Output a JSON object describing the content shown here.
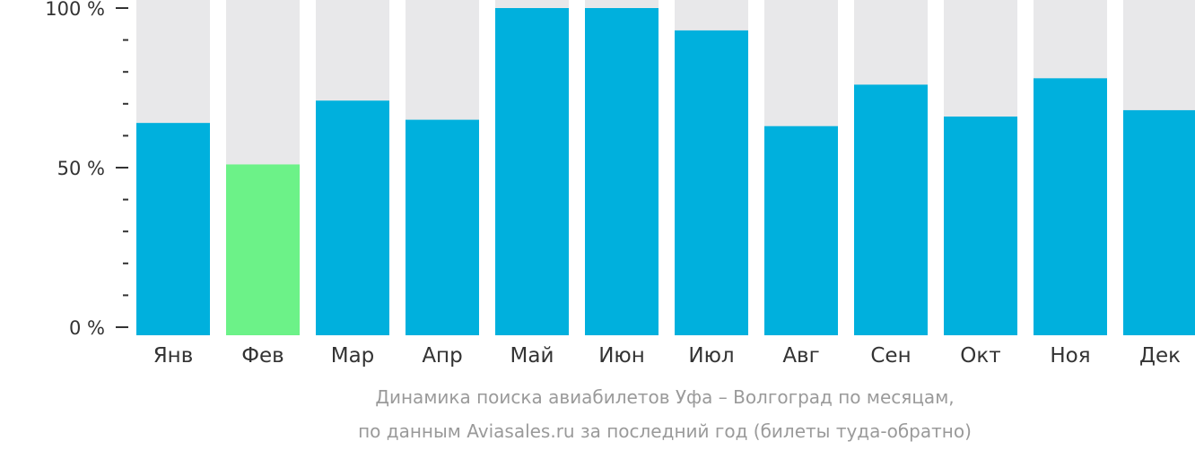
{
  "chart_data": {
    "type": "bar",
    "categories": [
      "Янв",
      "Фев",
      "Мар",
      "Апр",
      "Май",
      "Июн",
      "Июл",
      "Авг",
      "Сен",
      "Окт",
      "Ноя",
      "Дек"
    ],
    "values": [
      64,
      51,
      71,
      65,
      100,
      100,
      93,
      63,
      76,
      66,
      78,
      68
    ],
    "ylim": [
      0,
      100
    ],
    "y_ticks": [
      {
        "value": 0,
        "label": "0 %"
      },
      {
        "value": 50,
        "label": "50 %"
      },
      {
        "value": 100,
        "label": "100 %"
      }
    ],
    "y_minor_step": 10,
    "highlight_index": 1,
    "colors": {
      "bar": "#00b0dd",
      "highlight": "#6cf288",
      "background_bar": "#e8e8ea",
      "axis": "#333333"
    },
    "caption_lines": [
      "Динамика поиска авиабилетов Уфа – Волгоград по месяцам,",
      "по данным Aviasales.ru за последний год (билеты туда-обратно)"
    ],
    "grid": false,
    "legend": "none"
  }
}
